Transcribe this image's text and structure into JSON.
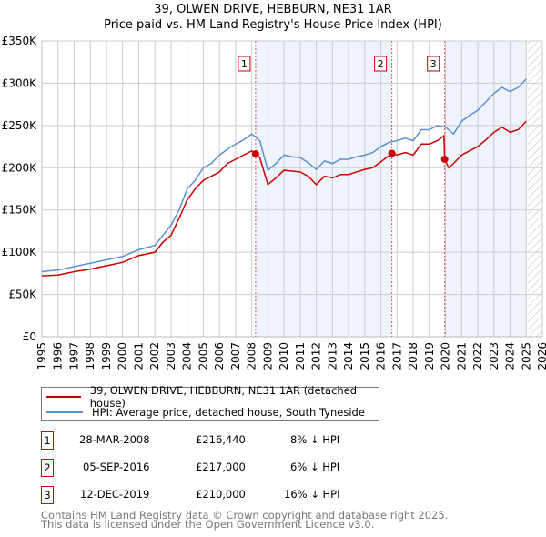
{
  "chart_data": {
    "type": "line",
    "title": "39, OLWEN DRIVE, HEBBURN, NE31 1AR",
    "subtitle": "Price paid vs. HM Land Registry's House Price Index (HPI)",
    "xlim": [
      1995,
      2026
    ],
    "ylim": [
      0,
      350000
    ],
    "x_ticks": [
      "1995",
      "1996",
      "1997",
      "1998",
      "1999",
      "2000",
      "2001",
      "2002",
      "2003",
      "2004",
      "2005",
      "2006",
      "2007",
      "2008",
      "2009",
      "2010",
      "2011",
      "2012",
      "2013",
      "2014",
      "2015",
      "2016",
      "2017",
      "2018",
      "2019",
      "2020",
      "2021",
      "2022",
      "2023",
      "2024",
      "2025",
      "2026"
    ],
    "y_ticks": [
      {
        "v": 0,
        "label": "£0"
      },
      {
        "v": 50000,
        "label": "£50K"
      },
      {
        "v": 100000,
        "label": "£100K"
      },
      {
        "v": 150000,
        "label": "£150K"
      },
      {
        "v": 200000,
        "label": "£200K"
      },
      {
        "v": 250000,
        "label": "£250K"
      },
      {
        "v": 300000,
        "label": "£300K"
      },
      {
        "v": 350000,
        "label": "£350K"
      }
    ],
    "grid": true,
    "shaded_periods": [
      [
        2008.24,
        2016.68
      ],
      [
        2019.95,
        2025.0
      ]
    ],
    "forecast_hatch_from": 2025.1,
    "series": [
      {
        "name": "39, OLWEN DRIVE, HEBBURN, NE31 1AR (detached house)",
        "color": "#cc0000",
        "x": [
          1995,
          1996,
          1997,
          1998,
          1999,
          2000,
          2001,
          2002,
          2002.5,
          2003,
          2003.5,
          2004,
          2004.5,
          2005,
          2005.5,
          2006,
          2006.5,
          2007,
          2007.5,
          2008,
          2008.24,
          2008.5,
          2009,
          2009.5,
          2010,
          2010.5,
          2011,
          2011.5,
          2012,
          2012.5,
          2013,
          2013.5,
          2014,
          2014.5,
          2015,
          2015.5,
          2016,
          2016.68,
          2017,
          2017.5,
          2018,
          2018.5,
          2019,
          2019.5,
          2019.9,
          2019.95,
          2020.2,
          2020.5,
          2021,
          2021.5,
          2022,
          2022.5,
          2023,
          2023.5,
          2024,
          2024.5,
          2025
        ],
        "y": [
          72000,
          73000,
          77000,
          80000,
          84000,
          88000,
          96000,
          100000,
          112000,
          120000,
          140000,
          162000,
          175000,
          185000,
          190000,
          195000,
          205000,
          210000,
          215000,
          220000,
          216440,
          212000,
          180000,
          188000,
          197000,
          196000,
          195000,
          190000,
          180000,
          190000,
          188000,
          192000,
          192000,
          195000,
          198000,
          200000,
          207000,
          217000,
          215000,
          218000,
          215000,
          228000,
          228000,
          232000,
          238000,
          210000,
          200000,
          205000,
          215000,
          220000,
          225000,
          233000,
          242000,
          248000,
          242000,
          245000,
          255000
        ]
      },
      {
        "name": "HPI: Average price, detached house, South Tyneside",
        "color": "#5b8fd4",
        "x": [
          1995,
          1996,
          1997,
          1998,
          1999,
          2000,
          2001,
          2002,
          2002.5,
          2003,
          2003.5,
          2004,
          2004.5,
          2005,
          2005.5,
          2006,
          2006.5,
          2007,
          2007.5,
          2008,
          2008.5,
          2009,
          2009.5,
          2010,
          2010.5,
          2011,
          2011.5,
          2012,
          2012.5,
          2013,
          2013.5,
          2014,
          2014.5,
          2015,
          2015.5,
          2016,
          2016.5,
          2017,
          2017.5,
          2018,
          2018.5,
          2019,
          2019.5,
          2020,
          2020.5,
          2021,
          2021.5,
          2022,
          2022.5,
          2023,
          2023.5,
          2024,
          2024.5,
          2025
        ],
        "y": [
          77000,
          79000,
          83000,
          87000,
          91000,
          95000,
          103000,
          108000,
          120000,
          132000,
          150000,
          175000,
          185000,
          200000,
          205000,
          215000,
          222000,
          228000,
          233000,
          240000,
          232000,
          197000,
          205000,
          215000,
          213000,
          212000,
          206000,
          198000,
          208000,
          205000,
          210000,
          210000,
          213000,
          215000,
          218000,
          225000,
          230000,
          232000,
          235000,
          232000,
          245000,
          245000,
          250000,
          248000,
          240000,
          255000,
          262000,
          268000,
          278000,
          288000,
          295000,
          290000,
          295000,
          305000
        ]
      }
    ],
    "sales": [
      {
        "id": "1",
        "x": 2008.24,
        "y": 216440,
        "date": "28-MAR-2008",
        "price": "£216,440",
        "hpi": "8% ↓ HPI"
      },
      {
        "id": "2",
        "x": 2016.68,
        "y": 217000,
        "date": "05-SEP-2016",
        "price": "£217,000",
        "hpi": "6% ↓ HPI"
      },
      {
        "id": "3",
        "x": 2019.95,
        "y": 210000,
        "date": "12-DEC-2019",
        "price": "£210,000",
        "hpi": "16% ↓ HPI"
      }
    ]
  },
  "footer": {
    "line1": "Contains HM Land Registry data © Crown copyright and database right 2025.",
    "line2": "This data is licensed under the Open Government Licence v3.0."
  }
}
